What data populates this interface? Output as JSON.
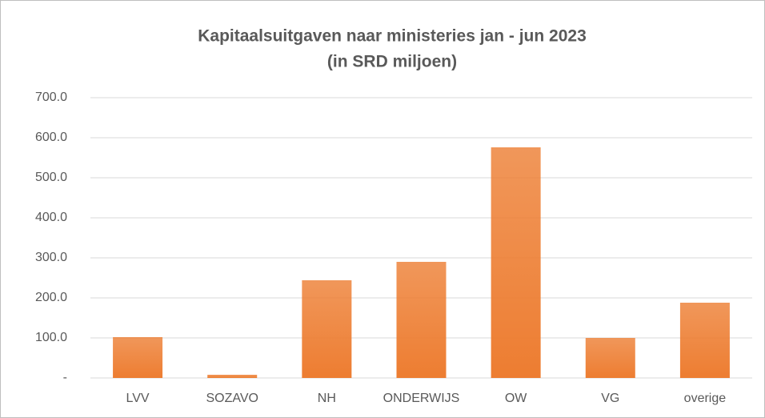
{
  "chart_data": {
    "type": "bar",
    "title": "Kapitaalsuitgaven naar ministeries jan - jun 2023",
    "subtitle": "(in SRD miljoen)",
    "categories": [
      "LVV",
      "SOZAVO",
      "NH",
      "ONDERWIJS",
      "OW",
      "VG",
      "overige"
    ],
    "values": [
      102,
      8,
      244,
      290,
      576,
      100,
      188
    ],
    "color": "#ed7d31",
    "ylim": [
      0,
      700
    ],
    "yticks": [
      {
        "value": 0,
        "label": "-"
      },
      {
        "value": 100,
        "label": "100.0"
      },
      {
        "value": 200,
        "label": "200.0"
      },
      {
        "value": 300,
        "label": "300.0"
      },
      {
        "value": 400,
        "label": "400.0"
      },
      {
        "value": 500,
        "label": "500.0"
      },
      {
        "value": 600,
        "label": "600.0"
      },
      {
        "value": 700,
        "label": "700.0"
      }
    ],
    "grid": true
  }
}
